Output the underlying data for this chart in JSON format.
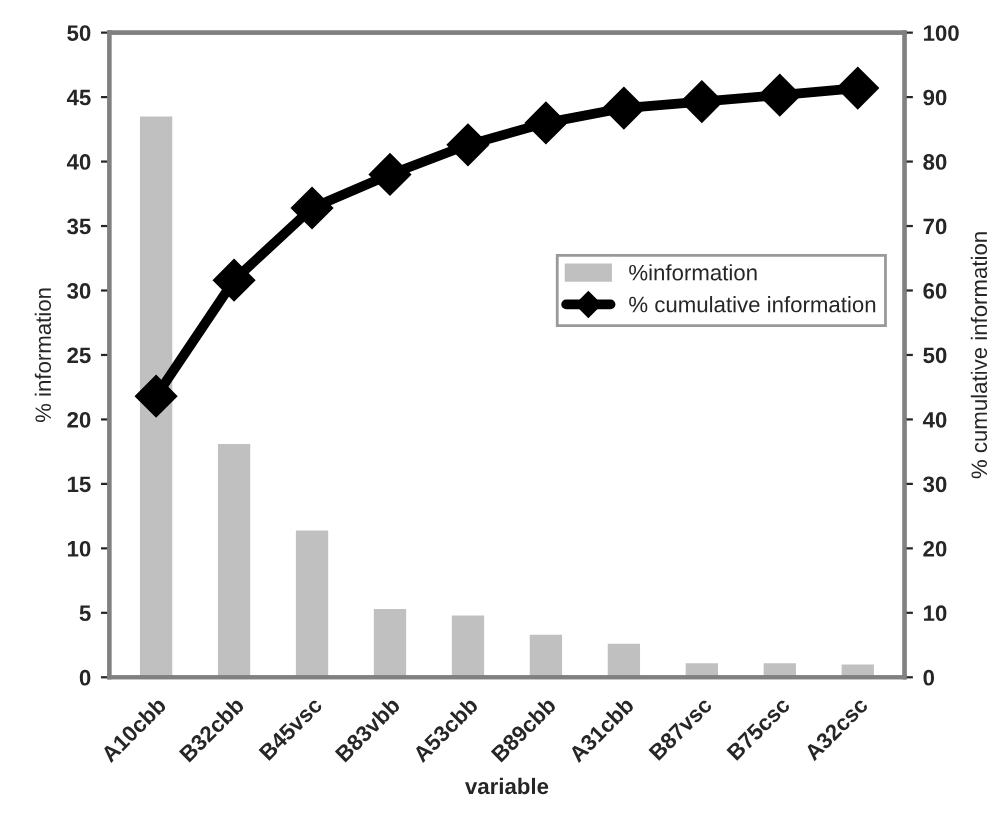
{
  "chart_data": {
    "type": "bar",
    "xlabel": "variable",
    "ylabel": "% information",
    "y2label": "% cumulative information",
    "categories": [
      "A10cbb",
      "B32cbb",
      "B45vsc",
      "B83vbb",
      "A53cbb",
      "B89cbb",
      "A31cbb",
      "B87vsc",
      "B75csc",
      "A32csc"
    ],
    "series": [
      {
        "name": "%information",
        "color": "#c0c0c0",
        "values": [
          43.6,
          18.2,
          11.5,
          5.4,
          4.9,
          3.4,
          2.7,
          1.2,
          1.2,
          1.1
        ]
      },
      {
        "name": "% cumulative information",
        "type": "line",
        "axis": "y2",
        "color": "#000000",
        "marker": "diamond",
        "values": [
          43.6,
          61.6,
          72.8,
          78,
          82.6,
          86,
          88.3,
          89.3,
          90.3,
          91.4
        ]
      }
    ],
    "ylim": [
      0,
      50
    ],
    "yticks": [
      0,
      5,
      10,
      15,
      20,
      25,
      30,
      35,
      40,
      45,
      50
    ],
    "y2lim": [
      0,
      100
    ],
    "y2ticks": [
      0,
      10,
      20,
      30,
      40,
      50,
      60,
      70,
      80,
      90,
      100
    ],
    "legend": "right",
    "grid": false
  }
}
